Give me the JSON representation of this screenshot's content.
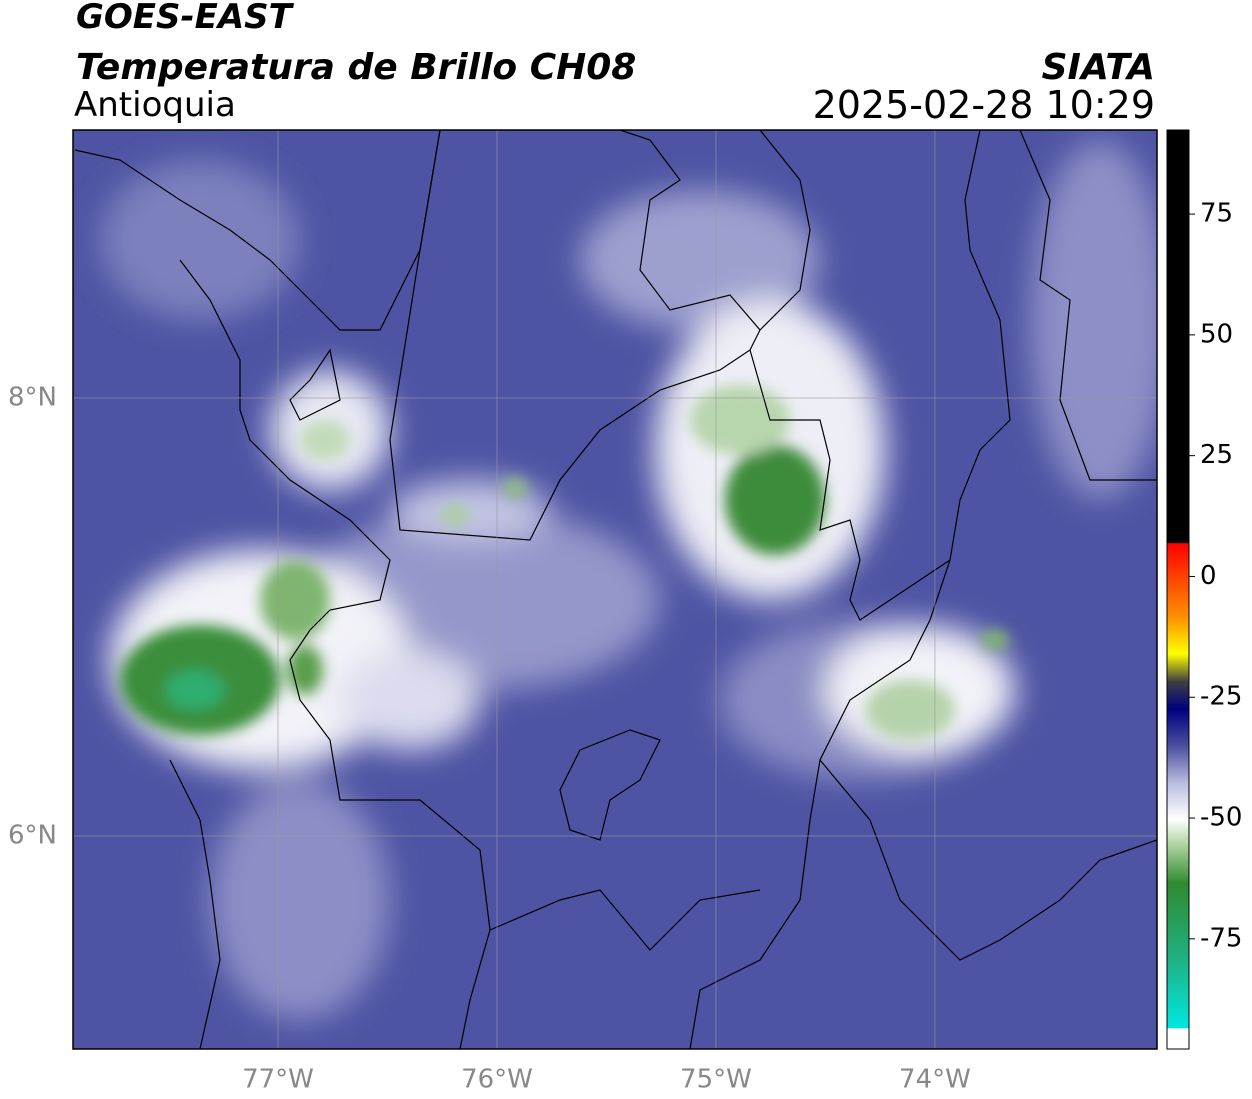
{
  "header": {
    "title": "GOES-EAST",
    "subtitle": "Temperatura de Brillo CH08",
    "region": "Antioquia",
    "source": "SIATA",
    "timestamp": "2025-02-28 10:29"
  },
  "map": {
    "xlim": [
      -77.936,
      -72.986
    ],
    "ylim": [
      5.027,
      9.224
    ],
    "xticks": [
      {
        "value": -77,
        "label": "77°W"
      },
      {
        "value": -76,
        "label": "76°W"
      },
      {
        "value": -75,
        "label": "75°W"
      },
      {
        "value": -74,
        "label": "74°W"
      }
    ],
    "yticks": [
      {
        "value": 6,
        "label": "6°N"
      },
      {
        "value": 8,
        "label": "8°N"
      }
    ],
    "grid": true
  },
  "colorbar": {
    "lim": [
      -97.8,
      92.4
    ],
    "ticks": [
      75,
      50,
      25,
      0,
      -25,
      -50,
      -75
    ]
  }
}
